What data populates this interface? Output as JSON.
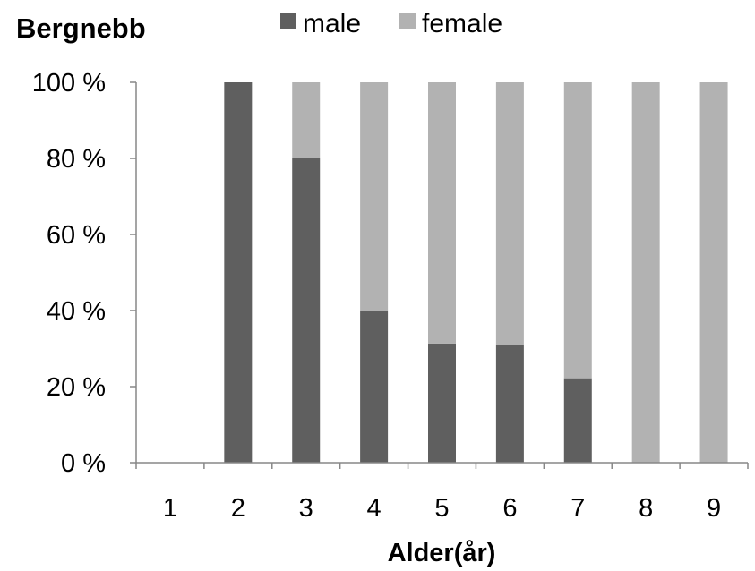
{
  "chart_data": {
    "type": "bar",
    "stacked": true,
    "percent_stacked": true,
    "title": "Bergnebb",
    "xlabel": "Alder(år)",
    "ylabel": "",
    "categories": [
      "1",
      "2",
      "3",
      "4",
      "5",
      "6",
      "7",
      "8",
      "9"
    ],
    "series": [
      {
        "name": "male",
        "color": "#5f5f5f",
        "values": [
          0,
          100,
          80,
          40,
          31.3,
          31,
          22.2,
          0,
          0
        ]
      },
      {
        "name": "female",
        "color": "#b2b2b2",
        "values": [
          0,
          0,
          20,
          60,
          68.7,
          69,
          77.8,
          100,
          100
        ]
      }
    ],
    "ylim": [
      0,
      100
    ],
    "yticks": [
      "0 %",
      "20 %",
      "40 %",
      "60 %",
      "80 %",
      "100 %"
    ],
    "ytick_values": [
      0,
      20,
      40,
      60,
      80,
      100
    ],
    "legend_position": "top",
    "grid": false
  }
}
